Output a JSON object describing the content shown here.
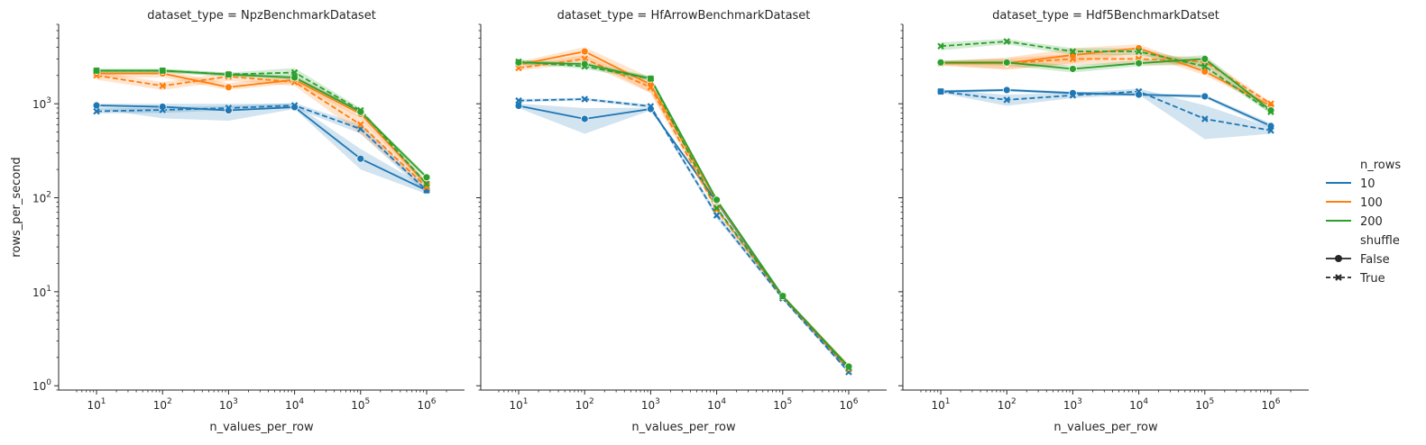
{
  "chart_data": {
    "type": "line",
    "xlabel": "n_values_per_row",
    "ylabel": "rows_per_second",
    "xscale": "log",
    "yscale": "log",
    "xlim": [
      5,
      2000000
    ],
    "ylim": [
      0.9,
      7000
    ],
    "x": [
      10,
      100,
      1000,
      10000,
      100000,
      1000000
    ],
    "x_tick_labels": [
      "10^1",
      "10^2",
      "10^3",
      "10^4",
      "10^5",
      "10^6"
    ],
    "y_tick_labels": [
      "10^0",
      "10^1",
      "10^2",
      "10^3"
    ],
    "colors": {
      "10": "#1f77b4",
      "100": "#ff7f0e",
      "200": "#2ca02c"
    },
    "legend": {
      "placement": "right",
      "hue_title": "n_rows",
      "hue_entries": [
        "10",
        "100",
        "200"
      ],
      "style_title": "shuffle",
      "style_entries": [
        "False",
        "True"
      ]
    },
    "panels": [
      {
        "title": "dataset_type = NpzBenchmarkDataset",
        "series": [
          {
            "n_rows": "10",
            "shuffle": "False",
            "values": [
              960,
              930,
              850,
              920,
              260,
              120
            ],
            "ci_low": [
              880,
              700,
              660,
              880,
              200,
              110
            ],
            "ci_high": [
              1000,
              1000,
              1000,
              1000,
              330,
              130
            ]
          },
          {
            "n_rows": "10",
            "shuffle": "True",
            "values": [
              830,
              860,
              900,
              960,
              540,
              120
            ],
            "ci_low": [
              790,
              800,
              850,
              900,
              480,
              110
            ],
            "ci_high": [
              880,
              920,
              950,
              1020,
              600,
              130
            ]
          },
          {
            "n_rows": "100",
            "shuffle": "False",
            "values": [
              2100,
              2100,
              1500,
              1800,
              780,
              140
            ],
            "ci_low": [
              1900,
              1900,
              1400,
              1650,
              700,
              130
            ],
            "ci_high": [
              2300,
              2300,
              1650,
              2000,
              860,
              150
            ]
          },
          {
            "n_rows": "100",
            "shuffle": "True",
            "values": [
              2000,
              1550,
              1950,
              1700,
              600,
              130
            ],
            "ci_low": [
              1800,
              1400,
              1750,
              1550,
              480,
              120
            ],
            "ci_high": [
              2200,
              1700,
              2150,
              1850,
              720,
              140
            ]
          },
          {
            "n_rows": "200",
            "shuffle": "False",
            "values": [
              2250,
              2250,
              2050,
              1900,
              820,
              165
            ],
            "ci_low": [
              2150,
              2150,
              1950,
              1800,
              780,
              155
            ],
            "ci_high": [
              2350,
              2350,
              2150,
              2000,
              860,
              175
            ]
          },
          {
            "n_rows": "200",
            "shuffle": "True",
            "values": [
              2250,
              2250,
              2050,
              2150,
              850,
              140
            ],
            "ci_low": [
              2150,
              2150,
              1950,
              1950,
              800,
              130
            ],
            "ci_high": [
              2350,
              2350,
              2150,
              2400,
              900,
              150
            ]
          }
        ]
      },
      {
        "title": "dataset_type = HfArrowBenchmarkDataset",
        "series": [
          {
            "n_rows": "10",
            "shuffle": "False",
            "values": [
              950,
              690,
              880,
              90,
              8.8,
              1.5
            ],
            "ci_low": [
              900,
              480,
              850,
              85,
              8.4,
              1.4
            ],
            "ci_high": [
              1000,
              900,
              910,
              95,
              9.2,
              1.6
            ]
          },
          {
            "n_rows": "10",
            "shuffle": "True",
            "values": [
              1080,
              1120,
              940,
              65,
              8.5,
              1.4
            ],
            "ci_low": [
              1040,
              1080,
              900,
              60,
              8.2,
              1.35
            ],
            "ci_high": [
              1120,
              1160,
              980,
              70,
              8.8,
              1.45
            ]
          },
          {
            "n_rows": "100",
            "shuffle": "False",
            "values": [
              2600,
              3600,
              1600,
              92,
              9.0,
              1.6
            ],
            "ci_low": [
              2400,
              3000,
              1300,
              88,
              8.6,
              1.5
            ],
            "ci_high": [
              2800,
              4000,
              1900,
              96,
              9.4,
              1.7
            ]
          },
          {
            "n_rows": "100",
            "shuffle": "True",
            "values": [
              2400,
              3000,
              1500,
              75,
              8.8,
              1.5
            ],
            "ci_low": [
              2250,
              2700,
              1300,
              70,
              8.5,
              1.45
            ],
            "ci_high": [
              2550,
              3300,
              1700,
              80,
              9.1,
              1.55
            ]
          },
          {
            "n_rows": "200",
            "shuffle": "False",
            "values": [
              2750,
              2650,
              1850,
              95,
              9.0,
              1.6
            ],
            "ci_low": [
              2600,
              2500,
              1750,
              91,
              8.7,
              1.55
            ],
            "ci_high": [
              2900,
              2800,
              1950,
              99,
              9.3,
              1.65
            ]
          },
          {
            "n_rows": "200",
            "shuffle": "True",
            "values": [
              2800,
              2500,
              1850,
              78,
              8.9,
              1.55
            ],
            "ci_low": [
              2650,
              2350,
              1750,
              74,
              8.6,
              1.5
            ],
            "ci_high": [
              2950,
              2650,
              1950,
              82,
              9.2,
              1.6
            ]
          }
        ]
      },
      {
        "title": "dataset_type = Hdf5BenchmarkDatset",
        "series": [
          {
            "n_rows": "10",
            "shuffle": "False",
            "values": [
              1350,
              1400,
              1300,
              1250,
              1200,
              580
            ],
            "ci_low": [
              1300,
              1350,
              1250,
              1200,
              1150,
              540
            ],
            "ci_high": [
              1400,
              1450,
              1350,
              1300,
              1250,
              620
            ]
          },
          {
            "n_rows": "10",
            "shuffle": "True",
            "values": [
              1350,
              1100,
              1230,
              1350,
              690,
              520
            ],
            "ci_low": [
              1300,
              950,
              1150,
              1250,
              420,
              480
            ],
            "ci_high": [
              1400,
              1250,
              1310,
              1450,
              960,
              560
            ]
          },
          {
            "n_rows": "100",
            "shuffle": "False",
            "values": [
              2700,
              2700,
              3300,
              3900,
              2200,
              950
            ],
            "ci_low": [
              2550,
              2300,
              2700,
              3500,
              2000,
              900
            ],
            "ci_high": [
              2850,
              3100,
              3900,
              4300,
              2400,
              1000
            ]
          },
          {
            "n_rows": "100",
            "shuffle": "True",
            "values": [
              2700,
              2700,
              3000,
              3000,
              2800,
              1000
            ],
            "ci_low": [
              2550,
              2350,
              2600,
              2600,
              2500,
              950
            ],
            "ci_high": [
              2850,
              3050,
              3400,
              3400,
              3100,
              1050
            ]
          },
          {
            "n_rows": "200",
            "shuffle": "False",
            "values": [
              2750,
              2750,
              2350,
              2700,
              3000,
              850
            ],
            "ci_low": [
              2600,
              2550,
              2150,
              2500,
              2700,
              800
            ],
            "ci_high": [
              2900,
              2950,
              2550,
              2900,
              3300,
              900
            ]
          },
          {
            "n_rows": "200",
            "shuffle": "True",
            "values": [
              4100,
              4600,
              3600,
              3600,
              2500,
              820
            ],
            "ci_low": [
              3700,
              4300,
              3300,
              3300,
              2300,
              780
            ],
            "ci_high": [
              4500,
              4900,
              3900,
              3900,
              2700,
              860
            ]
          }
        ]
      }
    ]
  }
}
